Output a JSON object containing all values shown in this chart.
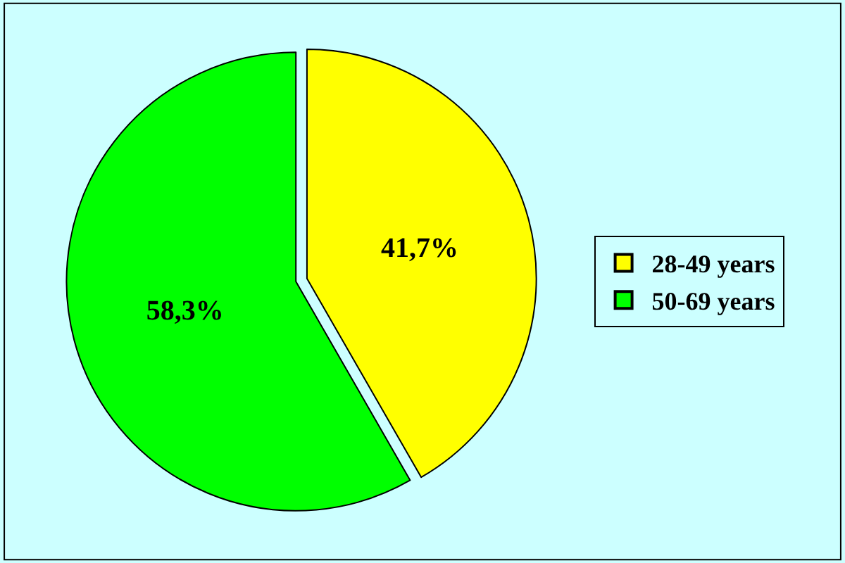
{
  "chart_data": {
    "type": "pie",
    "categories": [
      "28-49 years",
      "50-69 years"
    ],
    "values": [
      41.7,
      58.3
    ],
    "colors": [
      "#ffff00",
      "#00ff00"
    ],
    "value_labels": [
      "41,7%",
      "58,3%"
    ],
    "legend": "right"
  }
}
